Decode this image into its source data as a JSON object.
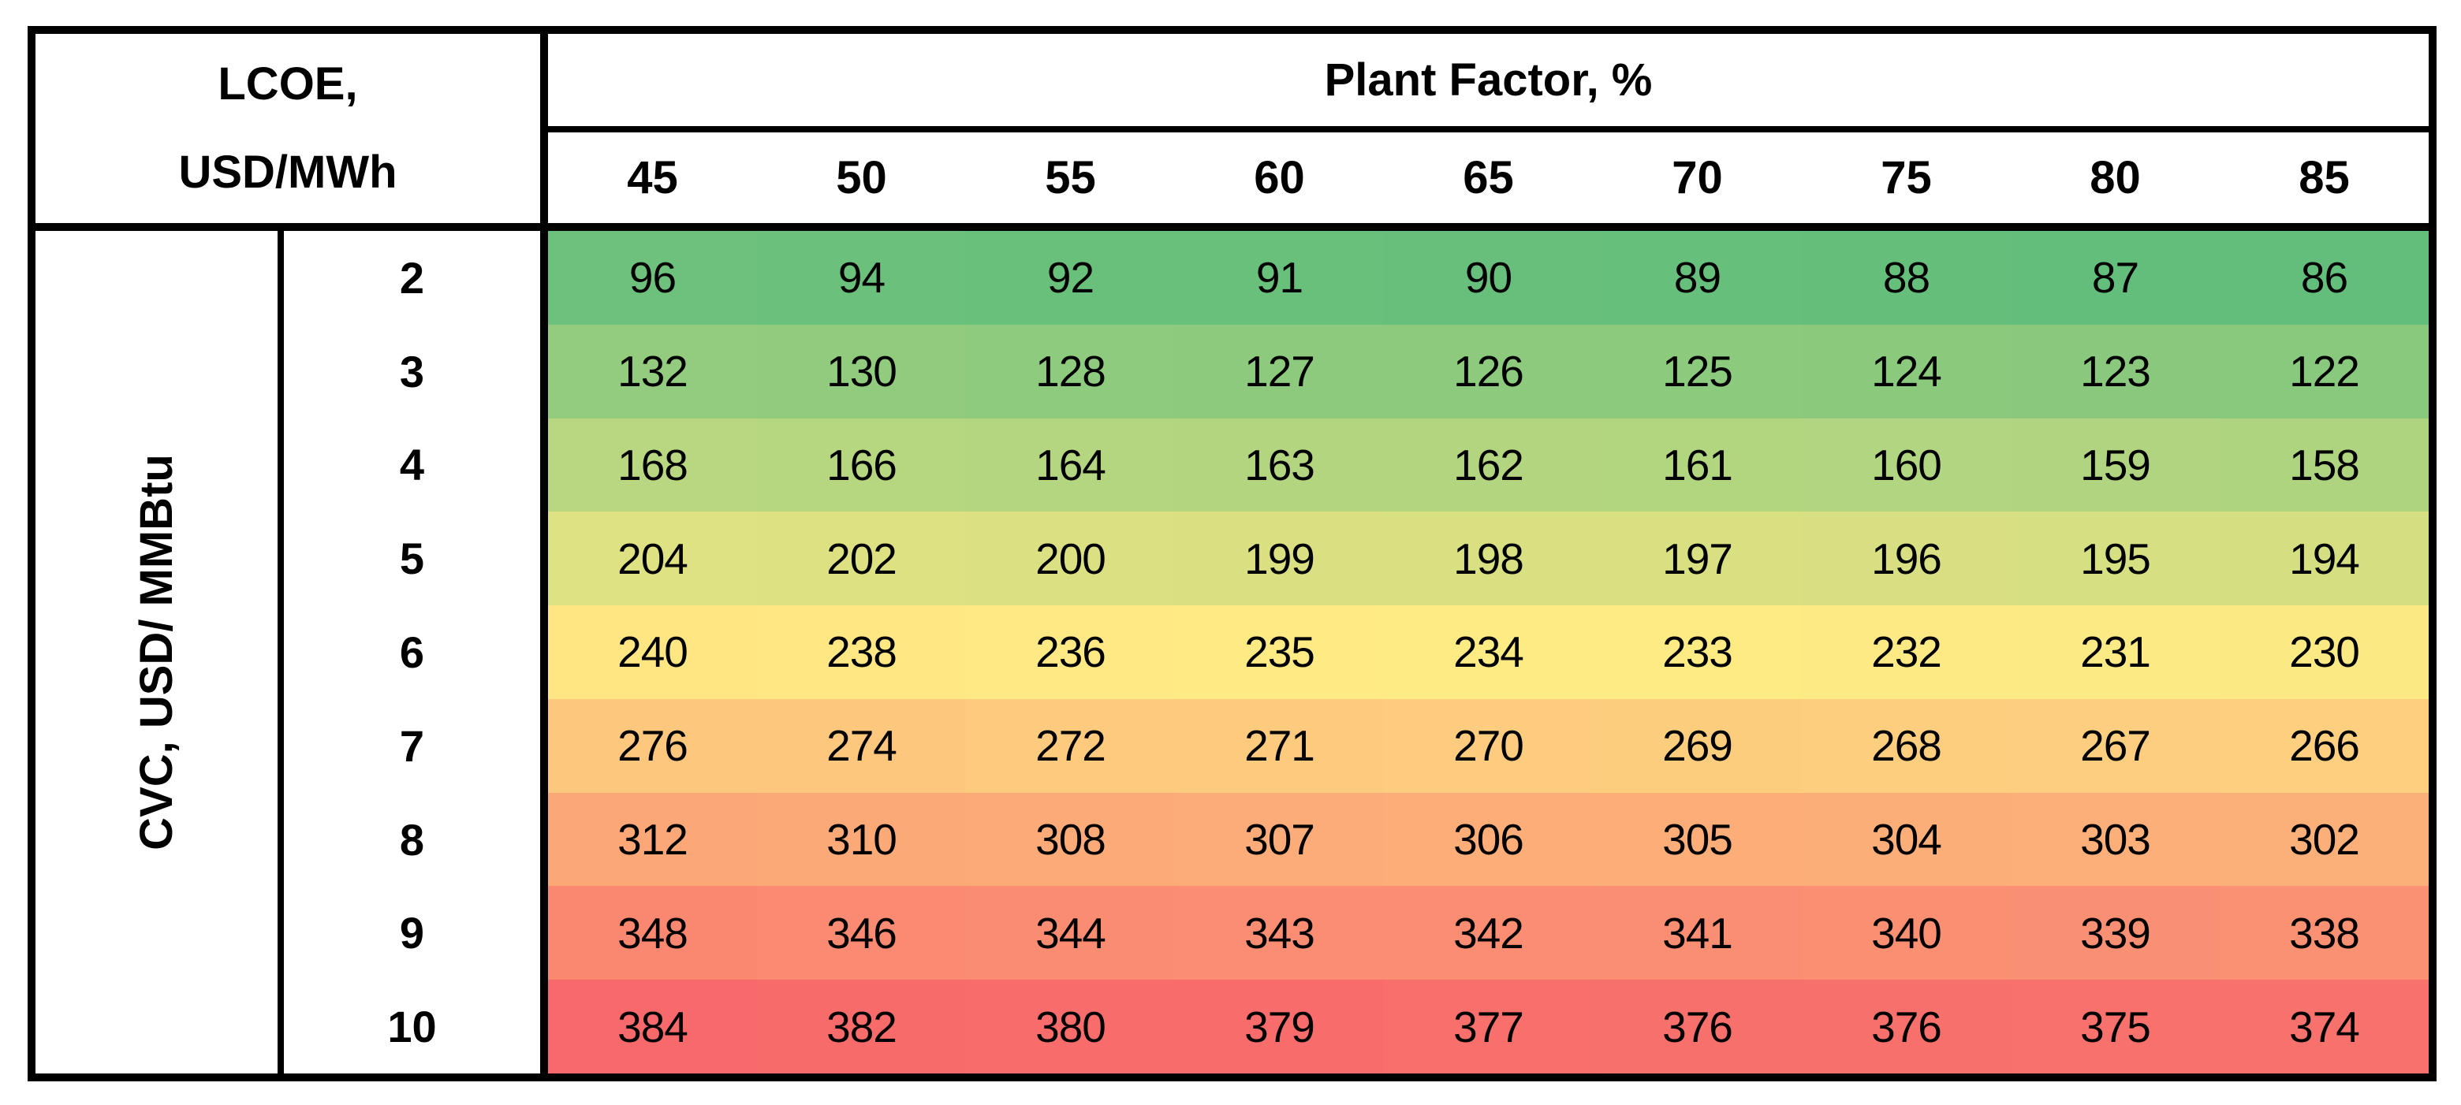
{
  "table": {
    "corner": {
      "line1": "LCOE,",
      "line2": "USD/MWh"
    },
    "col_group_label": "Plant Factor, %",
    "row_group_label": "CVC, USD/ MMBtu"
  },
  "chart_data": {
    "type": "heatmap",
    "title": "LCOE, USD/MWh",
    "xlabel": "Plant Factor, %",
    "ylabel": "CVC, USD/ MMBtu",
    "x": [
      45,
      50,
      55,
      60,
      65,
      70,
      75,
      80,
      85
    ],
    "y": [
      2,
      3,
      4,
      5,
      6,
      7,
      8,
      9,
      10
    ],
    "values": [
      [
        96,
        94,
        92,
        91,
        90,
        89,
        88,
        87,
        86
      ],
      [
        132,
        130,
        128,
        127,
        126,
        125,
        124,
        123,
        122
      ],
      [
        168,
        166,
        164,
        163,
        162,
        161,
        160,
        159,
        158
      ],
      [
        204,
        202,
        200,
        199,
        198,
        197,
        196,
        195,
        194
      ],
      [
        240,
        238,
        236,
        235,
        234,
        233,
        232,
        231,
        230
      ],
      [
        276,
        274,
        272,
        271,
        270,
        269,
        268,
        267,
        266
      ],
      [
        312,
        310,
        308,
        307,
        306,
        305,
        304,
        303,
        302
      ],
      [
        348,
        346,
        344,
        343,
        342,
        341,
        340,
        339,
        338
      ],
      [
        384,
        382,
        380,
        379,
        377,
        376,
        376,
        375,
        374
      ]
    ],
    "colorscale": {
      "style": "3-color-scale",
      "min": 86,
      "mid": 234,
      "max": 384,
      "min_color": "#63BE7B",
      "mid_color": "#FFEB84",
      "max_color": "#F8696B"
    },
    "grid": "none",
    "legend": "none"
  }
}
